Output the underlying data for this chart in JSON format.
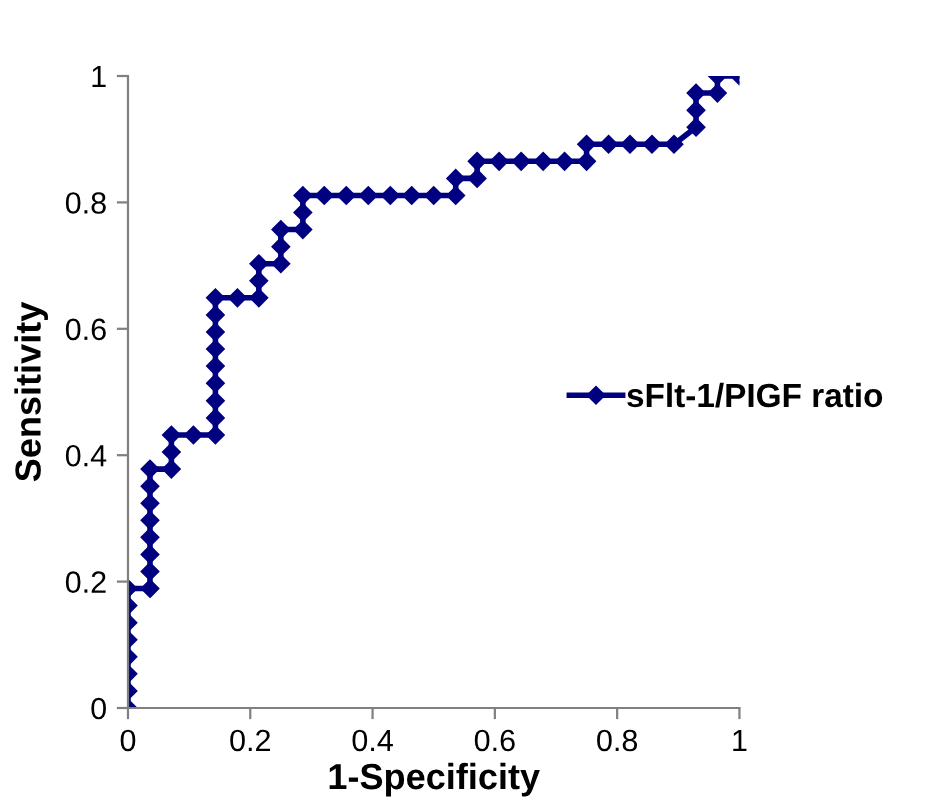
{
  "chart_data": {
    "type": "line",
    "xlabel": "1-Specificity",
    "ylabel": "Sensitivity",
    "series": [
      {
        "name": "sFlt-1/PIGF ratio",
        "color": "#000080",
        "x": [
          0,
          0,
          0,
          0,
          0,
          0,
          0,
          0,
          0.036,
          0.036,
          0.036,
          0.036,
          0.036,
          0.036,
          0.036,
          0.036,
          0.071,
          0.071,
          0.071,
          0.107,
          0.143,
          0.143,
          0.143,
          0.143,
          0.143,
          0.143,
          0.143,
          0.143,
          0.143,
          0.179,
          0.214,
          0.214,
          0.214,
          0.25,
          0.25,
          0.25,
          0.286,
          0.286,
          0.286,
          0.321,
          0.357,
          0.393,
          0.429,
          0.464,
          0.5,
          0.536,
          0.536,
          0.571,
          0.571,
          0.607,
          0.643,
          0.679,
          0.714,
          0.75,
          0.75,
          0.786,
          0.821,
          0.857,
          0.893,
          0.929,
          0.929,
          0.929,
          0.964,
          0.964,
          1
        ],
        "values": [
          0,
          0.027,
          0.054,
          0.081,
          0.108,
          0.135,
          0.162,
          0.189,
          0.189,
          0.216,
          0.243,
          0.27,
          0.297,
          0.324,
          0.351,
          0.378,
          0.378,
          0.405,
          0.432,
          0.432,
          0.432,
          0.459,
          0.486,
          0.514,
          0.541,
          0.568,
          0.595,
          0.622,
          0.649,
          0.649,
          0.649,
          0.676,
          0.703,
          0.703,
          0.73,
          0.757,
          0.757,
          0.784,
          0.811,
          0.811,
          0.811,
          0.811,
          0.811,
          0.811,
          0.811,
          0.811,
          0.838,
          0.838,
          0.865,
          0.865,
          0.865,
          0.865,
          0.865,
          0.865,
          0.892,
          0.892,
          0.892,
          0.892,
          0.892,
          0.919,
          0.946,
          0.973,
          0.973,
          1,
          1
        ]
      }
    ],
    "xlim": [
      0,
      1
    ],
    "ylim": [
      0,
      1
    ],
    "xticks": [
      0,
      0.2,
      0.4,
      0.6,
      0.8,
      1
    ],
    "yticks": [
      0,
      0.2,
      0.4,
      0.6,
      0.8,
      1
    ],
    "marker": "diamond",
    "line_style": "solid",
    "grid": false,
    "legend": "right"
  }
}
